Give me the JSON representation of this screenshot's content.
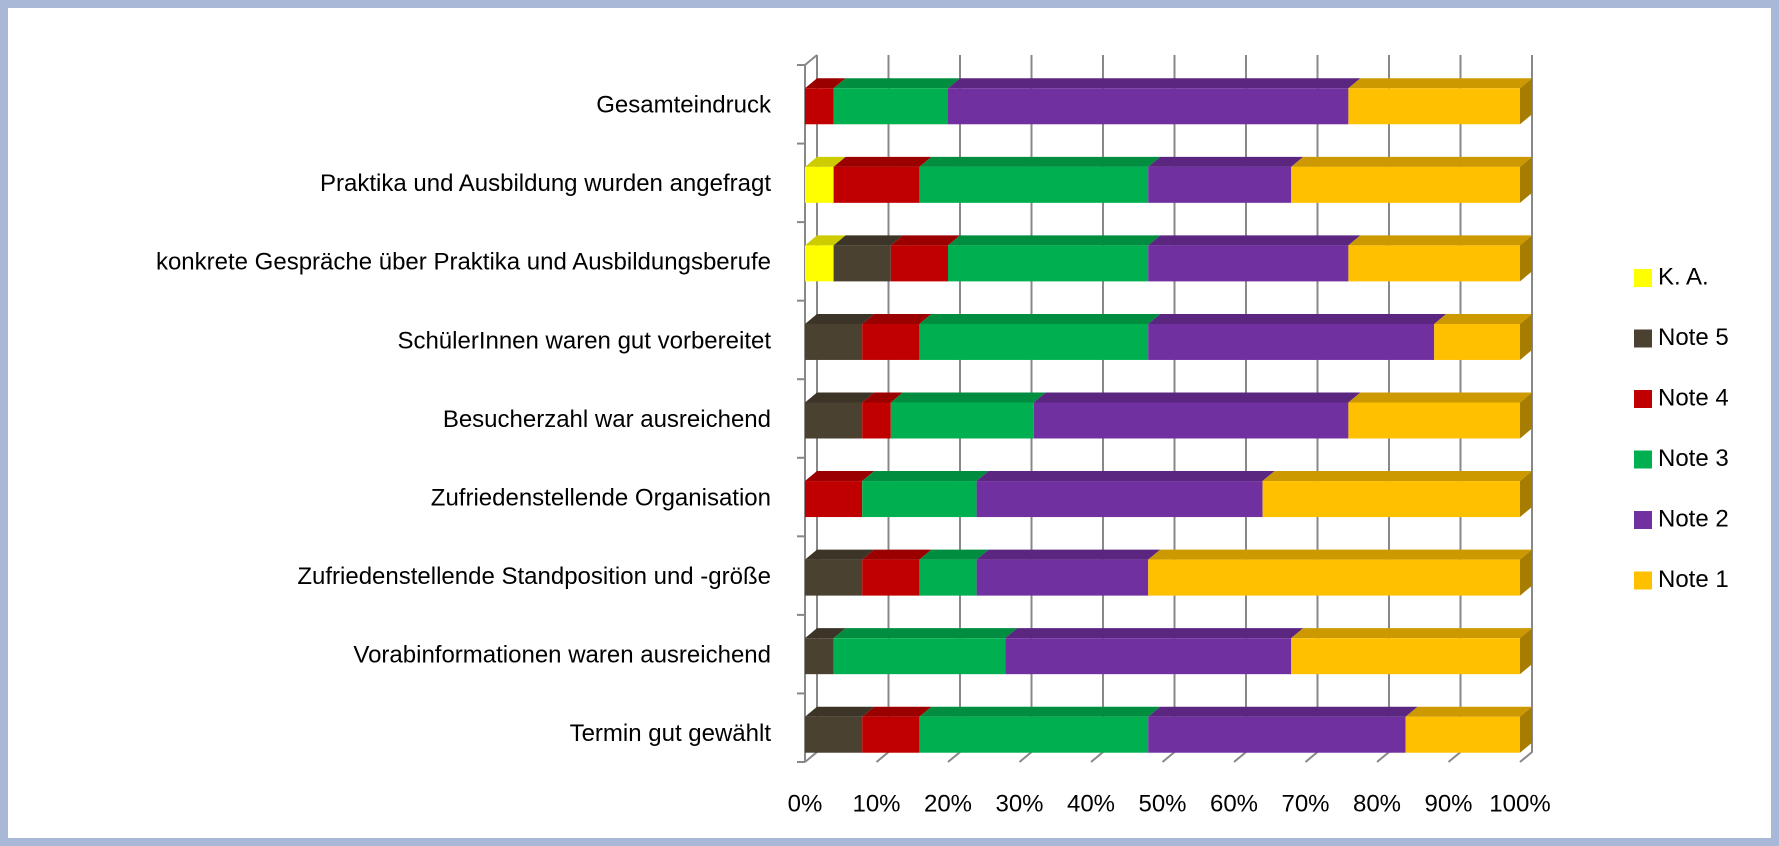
{
  "chart_data": {
    "type": "stacked_bar_horizontal",
    "categories": [
      "Gesamteindruck",
      "Praktika und Ausbildung wurden angefragt",
      "konkrete Gespräche über Praktika und Ausbildungsberufe",
      "SchülerInnen waren gut vorbereitet",
      "Besucherzahl war ausreichend",
      "Zufriedenstellende Organisation",
      "Zufriedenstellende Standposition und -größe",
      "Vorabinformationen waren ausreichend",
      "Termin gut gewählt"
    ],
    "series": [
      {
        "name": "K. A.",
        "color": "#ffff00",
        "values": [
          0,
          4,
          4,
          0,
          0,
          0,
          0,
          0,
          0
        ]
      },
      {
        "name": "Note 5",
        "color": "#4a4131",
        "values": [
          0,
          0,
          8,
          8,
          8,
          0,
          8,
          4,
          8
        ]
      },
      {
        "name": "Note 4",
        "color": "#c00000",
        "values": [
          4,
          12,
          8,
          8,
          4,
          8,
          8,
          0,
          8
        ]
      },
      {
        "name": "Note 3",
        "color": "#00b050",
        "values": [
          16,
          32,
          28,
          32,
          20,
          16,
          8,
          24,
          32
        ]
      },
      {
        "name": "Note 2",
        "color": "#7030a0",
        "values": [
          56,
          20,
          28,
          40,
          44,
          40,
          24,
          40,
          36
        ]
      },
      {
        "name": "Note 1",
        "color": "#ffc000",
        "values": [
          24,
          32,
          24,
          12,
          24,
          36,
          52,
          32,
          16
        ]
      }
    ],
    "xlim": [
      0,
      100
    ],
    "xticks": [
      {
        "value": 0,
        "label": "0%"
      },
      {
        "value": 10,
        "label": "10%"
      },
      {
        "value": 20,
        "label": "20%"
      },
      {
        "value": 30,
        "label": "30%"
      },
      {
        "value": 40,
        "label": "40%"
      },
      {
        "value": 50,
        "label": "50%"
      },
      {
        "value": 60,
        "label": "60%"
      },
      {
        "value": 70,
        "label": "70%"
      },
      {
        "value": 80,
        "label": "80%"
      },
      {
        "value": 90,
        "label": "90%"
      },
      {
        "value": 100,
        "label": "100%"
      }
    ],
    "grid": true,
    "legend": "right"
  }
}
